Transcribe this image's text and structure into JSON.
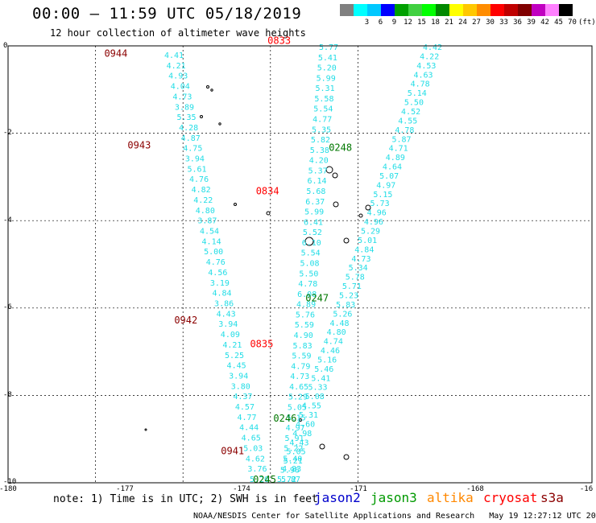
{
  "header": {
    "title": "00:00 — 11:59 UTC 05/18/2019",
    "subtitle": "12 hour collection of altimeter wave heights"
  },
  "colorbar": {
    "units": "(ft)",
    "items": [
      {
        "label": "",
        "color": "#808080"
      },
      {
        "label": "3",
        "color": "#00ffff"
      },
      {
        "label": "6",
        "color": "#00c8ff"
      },
      {
        "label": "9",
        "color": "#0000ff"
      },
      {
        "label": "12",
        "color": "#00a000"
      },
      {
        "label": "15",
        "color": "#40d040"
      },
      {
        "label": "18",
        "color": "#00ff00"
      },
      {
        "label": "21",
        "color": "#008800"
      },
      {
        "label": "24",
        "color": "#ffff00"
      },
      {
        "label": "27",
        "color": "#ffc800"
      },
      {
        "label": "30",
        "color": "#ff8c00"
      },
      {
        "label": "33",
        "color": "#ff0000"
      },
      {
        "label": "36",
        "color": "#c00000"
      },
      {
        "label": "39",
        "color": "#800000"
      },
      {
        "label": "42",
        "color": "#c000c0"
      },
      {
        "label": "45",
        "color": "#ff80ff"
      },
      {
        "label": "70",
        "color": "#000000"
      }
    ]
  },
  "axes": {
    "x_ticks": [
      "-180",
      "-177",
      "-174",
      "-171",
      "-168",
      "-16"
    ],
    "y_ticks": [
      "0",
      "-2",
      "-4",
      "-6",
      "-8",
      "-10"
    ]
  },
  "time_labels": [
    {
      "text": "0944",
      "color": "#8b0000",
      "lon": -176.7,
      "lat": -0.25
    },
    {
      "text": "0943",
      "color": "#8b0000",
      "lon": -175.9,
      "lat": -2.35
    },
    {
      "text": "0942",
      "color": "#8b0000",
      "lon": -174.3,
      "lat": -6.35
    },
    {
      "text": "0941",
      "color": "#8b0000",
      "lon": -172.7,
      "lat": -9.35
    },
    {
      "text": "0833",
      "color": "#ff0000",
      "lon": -171.1,
      "lat": 0.05
    },
    {
      "text": "0834",
      "color": "#ff0000",
      "lon": -171.5,
      "lat": -3.4
    },
    {
      "text": "0835",
      "color": "#ff0000",
      "lon": -171.7,
      "lat": -6.9
    },
    {
      "text": "0248",
      "color": "#007700",
      "lon": -169.0,
      "lat": -2.4
    },
    {
      "text": "0247",
      "color": "#007700",
      "lon": -169.8,
      "lat": -5.85
    },
    {
      "text": "0246",
      "color": "#007700",
      "lon": -170.9,
      "lat": -8.6
    },
    {
      "text": "0245",
      "color": "#007700",
      "lon": -171.6,
      "lat": -10.0
    }
  ],
  "tracks": {
    "t0944": [
      "4.41",
      "4.21",
      "4.93",
      "4.04",
      "4.73",
      "3.89",
      "5.35",
      "4.28",
      "4.87",
      "4.75",
      "3.94",
      "5.61",
      "4.76",
      "4.82",
      "4.22",
      "4.80",
      "3.87",
      "4.54",
      "4.14",
      "5.00",
      "4.76",
      "4.56",
      "3.19",
      "4.84",
      "3.86",
      "4.43",
      "3.94",
      "4.09",
      "4.21",
      "5.25",
      "4.45",
      "3.94",
      "3.80",
      "4.37",
      "4.57",
      "4.77",
      "4.44",
      "4.65",
      "5.03",
      "4.62",
      "3.76",
      "5.20"
    ],
    "t0833": [
      "5.77",
      "5.41",
      "5.20",
      "5.99",
      "5.31",
      "5.58",
      "5.54",
      "4.77",
      "5.35",
      "5.82",
      "5.38",
      "4.20",
      "5.37",
      "6.14",
      "5.68",
      "6.37",
      "5.99",
      "6.41",
      "5.52",
      "6.10",
      "5.54",
      "5.08",
      "5.50",
      "4.78",
      "6.08",
      "4.89",
      "5.76",
      "5.59",
      "4.90",
      "5.83",
      "5.59",
      "4.79",
      "4.73",
      "4.65",
      "5.29",
      "5.05",
      "5.15",
      "4.97",
      "5.91",
      "5.22",
      "5.40",
      "4.83",
      "5.87"
    ],
    "t0248": [
      "4.42",
      "4.22",
      "4.53",
      "4.63",
      "4.78",
      "5.14",
      "5.50",
      "4.52",
      "4.55",
      "4.78",
      "5.87",
      "4.71",
      "4.89",
      "4.64",
      "5.07",
      "4.97",
      "5.15",
      "5.73",
      "4.96",
      "4.96",
      "5.29",
      "5.01",
      "4.84",
      "4.73",
      "5.34",
      "5.78",
      "5.71",
      "5.23",
      "5.83",
      "5.26",
      "4.48",
      "4.80",
      "4.74",
      "4.46",
      "5.16",
      "5.46",
      "5.41",
      "5.33",
      "5.08",
      "4.55",
      "5.31",
      "4.60",
      "4.98",
      "4.43",
      "5.05",
      "5.21",
      "5.96",
      "5.72"
    ]
  },
  "note": {
    "text": "note: 1) Time is in UTC; 2) SWH is in feet"
  },
  "satellites": [
    {
      "name": "jason2",
      "color": "#0000cc"
    },
    {
      "name": "jason3",
      "color": "#009900"
    },
    {
      "name": "altika",
      "color": "#ff8800"
    },
    {
      "name": "cryosat",
      "color": "#ff0000"
    },
    {
      "name": "s3a",
      "color": "#8b0000"
    }
  ],
  "footer": {
    "credit": "NOAA/NESDIS Center for Satellite Applications and Research",
    "timestamp": "May 19 12:27:12 UTC 2019"
  }
}
